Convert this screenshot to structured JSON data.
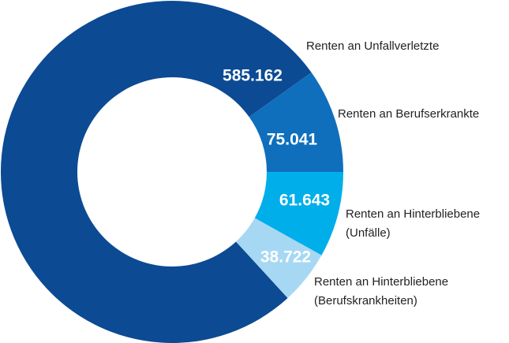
{
  "chart_data": {
    "type": "donut",
    "categories": [
      "Renten an Unfallverletzte",
      "Renten an Berufserkrankte",
      "Renten an Hinterbliebene (Unfälle)",
      "Renten an Hinterbliebene (Berufskrankheiten)"
    ],
    "values": [
      585162,
      75041,
      61643,
      38722
    ],
    "value_labels": [
      "585.162",
      "75.041",
      "61.643",
      "38.722"
    ],
    "colors": [
      "#0c4a93",
      "#0f6fbd",
      "#00aeea",
      "#a6d8f4"
    ]
  }
}
